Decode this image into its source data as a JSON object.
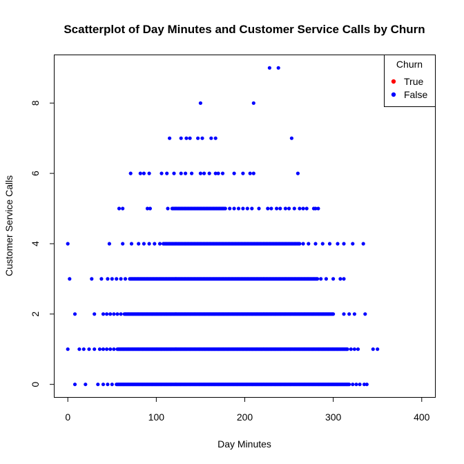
{
  "chart_data": {
    "type": "scatter",
    "title": "Scatterplot of Day Minutes and Customer Service Calls by Churn",
    "xlabel": "Day Minutes",
    "ylabel": "Customer Service Calls",
    "xlim": [
      -15,
      415
    ],
    "ylim": [
      -0.36,
      9.36
    ],
    "x_ticks": [
      0,
      100,
      200,
      300,
      400
    ],
    "y_ticks": [
      0,
      2,
      4,
      6,
      8
    ],
    "grid": false,
    "legend": {
      "title": "Churn",
      "position": "top-right",
      "entries": [
        {
          "label": "True",
          "color": "#ff0000"
        },
        {
          "label": "False",
          "color": "#0000ff"
        }
      ]
    },
    "series": [
      {
        "name": "False",
        "color": "#0000ff",
        "groups": [
          {
            "y": 0,
            "isolated": [
              8,
              20,
              34,
              40,
              45,
              50
            ],
            "dense_range": [
              55,
              318
            ],
            "tail": [
              322,
              326,
              330,
              335,
              338
            ]
          },
          {
            "y": 1,
            "isolated": [
              0,
              13,
              18,
              24,
              30,
              36,
              40,
              44,
              48,
              52
            ],
            "dense_range": [
              56,
              316
            ],
            "tail": [
              320,
              324,
              328,
              345,
              350
            ]
          },
          {
            "y": 2,
            "isolated": [
              8,
              30,
              40,
              44,
              48,
              52,
              56,
              60
            ],
            "dense_range": [
              64,
              300
            ],
            "tail": [
              312,
              318,
              324,
              336
            ]
          },
          {
            "y": 3,
            "isolated": [
              2,
              27,
              38,
              45,
              50,
              55,
              60,
              65
            ],
            "dense_range": [
              70,
              282
            ],
            "tail": [
              286,
              292,
              300,
              308,
              312
            ]
          },
          {
            "y": 4,
            "isolated": [
              0,
              47,
              62,
              72,
              80,
              86,
              92,
              98,
              104
            ],
            "dense_range": [
              108,
              262
            ],
            "tail": [
              266,
              272,
              280,
              288,
              296,
              305,
              312,
              322,
              334
            ]
          },
          {
            "y": 5,
            "isolated": [
              58,
              62,
              90,
              93,
              113
            ],
            "dense_range": [
              118,
              178
            ],
            "tail": [
              183,
              188,
              193,
              198,
              203,
              208,
              216,
              226,
              230,
              236,
              240,
              246,
              250,
              256,
              262,
              266,
              270,
              278,
              280,
              283
            ]
          },
          {
            "y": 6,
            "isolated": [
              71,
              82,
              86,
              92,
              106,
              112,
              120,
              128,
              133,
              140,
              150,
              154,
              160,
              167,
              170,
              175,
              188,
              198,
              206,
              210,
              260
            ],
            "dense_range": [],
            "tail": []
          },
          {
            "y": 7,
            "isolated": [
              115,
              128,
              134,
              138,
              147,
              152,
              162,
              167,
              253
            ],
            "dense_range": [],
            "tail": []
          },
          {
            "y": 8,
            "isolated": [
              150,
              210
            ],
            "dense_range": [],
            "tail": []
          },
          {
            "y": 9,
            "isolated": [
              228,
              238
            ],
            "dense_range": [],
            "tail": []
          }
        ]
      },
      {
        "name": "True",
        "color": "#ff0000",
        "groups": []
      }
    ]
  }
}
